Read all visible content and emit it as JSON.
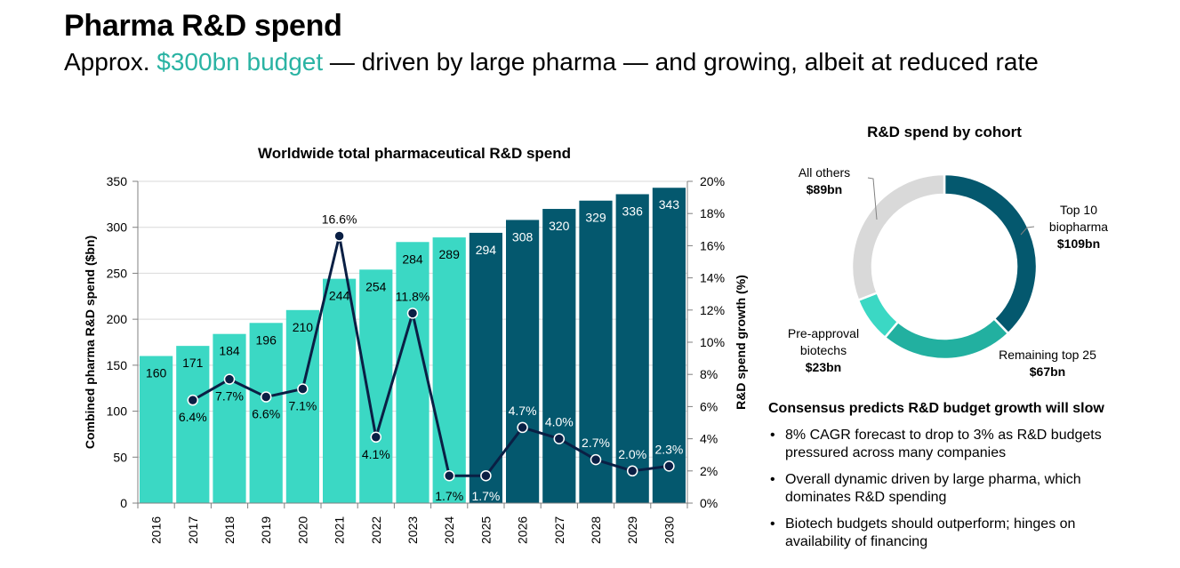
{
  "header": {
    "title": "Pharma R&D spend",
    "subtitle_prefix": "Approx. ",
    "subtitle_highlight": "$300bn budget",
    "subtitle_suffix": " — driven by large pharma — and growing, albeit at reduced rate",
    "highlight_color": "#2ab3a3"
  },
  "chart_data": [
    {
      "type": "bar",
      "title": "Worldwide total pharmaceutical R&D spend",
      "xlabel": "",
      "ylabel": "Combined pharma R&D spend ($bn)",
      "y2label": "R&D spend growth (%)",
      "ylim": [
        0,
        350
      ],
      "yticks": [
        "0",
        "50",
        "100",
        "150",
        "200",
        "250",
        "300",
        "350"
      ],
      "y2lim": [
        0,
        20
      ],
      "y2ticks": [
        "0%",
        "2%",
        "4%",
        "6%",
        "8%",
        "10%",
        "12%",
        "14%",
        "16%",
        "18%",
        "20%"
      ],
      "grid": true,
      "categories": [
        "2016",
        "2017",
        "2018",
        "2019",
        "2020",
        "2021",
        "2022",
        "2023",
        "2024",
        "2025",
        "2026",
        "2027",
        "2028",
        "2029",
        "2030"
      ],
      "series": [
        {
          "name": "Combined pharma R&D spend ($bn)",
          "type": "bar",
          "axis": "left",
          "values": [
            160,
            171,
            184,
            196,
            210,
            244,
            254,
            284,
            289,
            294,
            308,
            320,
            329,
            336,
            343
          ],
          "colors": {
            "historical": "#3bd8c4",
            "forecast": "#04586e"
          },
          "forecast_from": "2025"
        },
        {
          "name": "R&D spend growth (%)",
          "type": "line",
          "axis": "right",
          "values": [
            null,
            6.4,
            7.7,
            6.6,
            7.1,
            16.6,
            4.1,
            11.8,
            1.7,
            1.7,
            4.7,
            4.0,
            2.7,
            2.0,
            2.3
          ],
          "labels": [
            "",
            "6.4%",
            "7.7%",
            "6.6%",
            "7.1%",
            "16.6%",
            "4.1%",
            "11.8%",
            "1.7%",
            "1.7%",
            "4.7%",
            "4.0%",
            "2.7%",
            "2.0%",
            "2.3%"
          ],
          "color": "#0a1f44"
        }
      ]
    },
    {
      "type": "pie",
      "title": "R&D spend by cohort",
      "donut": true,
      "unit": "$bn",
      "slices": [
        {
          "name": "Top 10 biopharma",
          "label_lines": [
            "Top 10",
            "biopharma"
          ],
          "value": 109,
          "value_label": "$109bn",
          "color": "#04586e"
        },
        {
          "name": "Remaining top 25",
          "label_lines": [
            "Remaining top 25"
          ],
          "value": 67,
          "value_label": "$67bn",
          "color": "#22b0a0"
        },
        {
          "name": "Pre-approval biotechs",
          "label_lines": [
            "Pre-approval",
            "biotechs"
          ],
          "value": 23,
          "value_label": "$23bn",
          "color": "#3bd8c4"
        },
        {
          "name": "All others",
          "label_lines": [
            "All others"
          ],
          "value": 89,
          "value_label": "$89bn",
          "color": "#d9d9d9"
        }
      ]
    }
  ],
  "commentary": {
    "title": "Consensus predicts R&D budget growth will slow",
    "bullet_glyph": "•",
    "bullets": [
      "8% CAGR forecast to drop to 3% as R&D budgets pressured across many companies",
      "Overall dynamic driven by large pharma, which dominates R&D spending",
      "Biotech budgets should outperform; hinges on availability of financing"
    ]
  }
}
